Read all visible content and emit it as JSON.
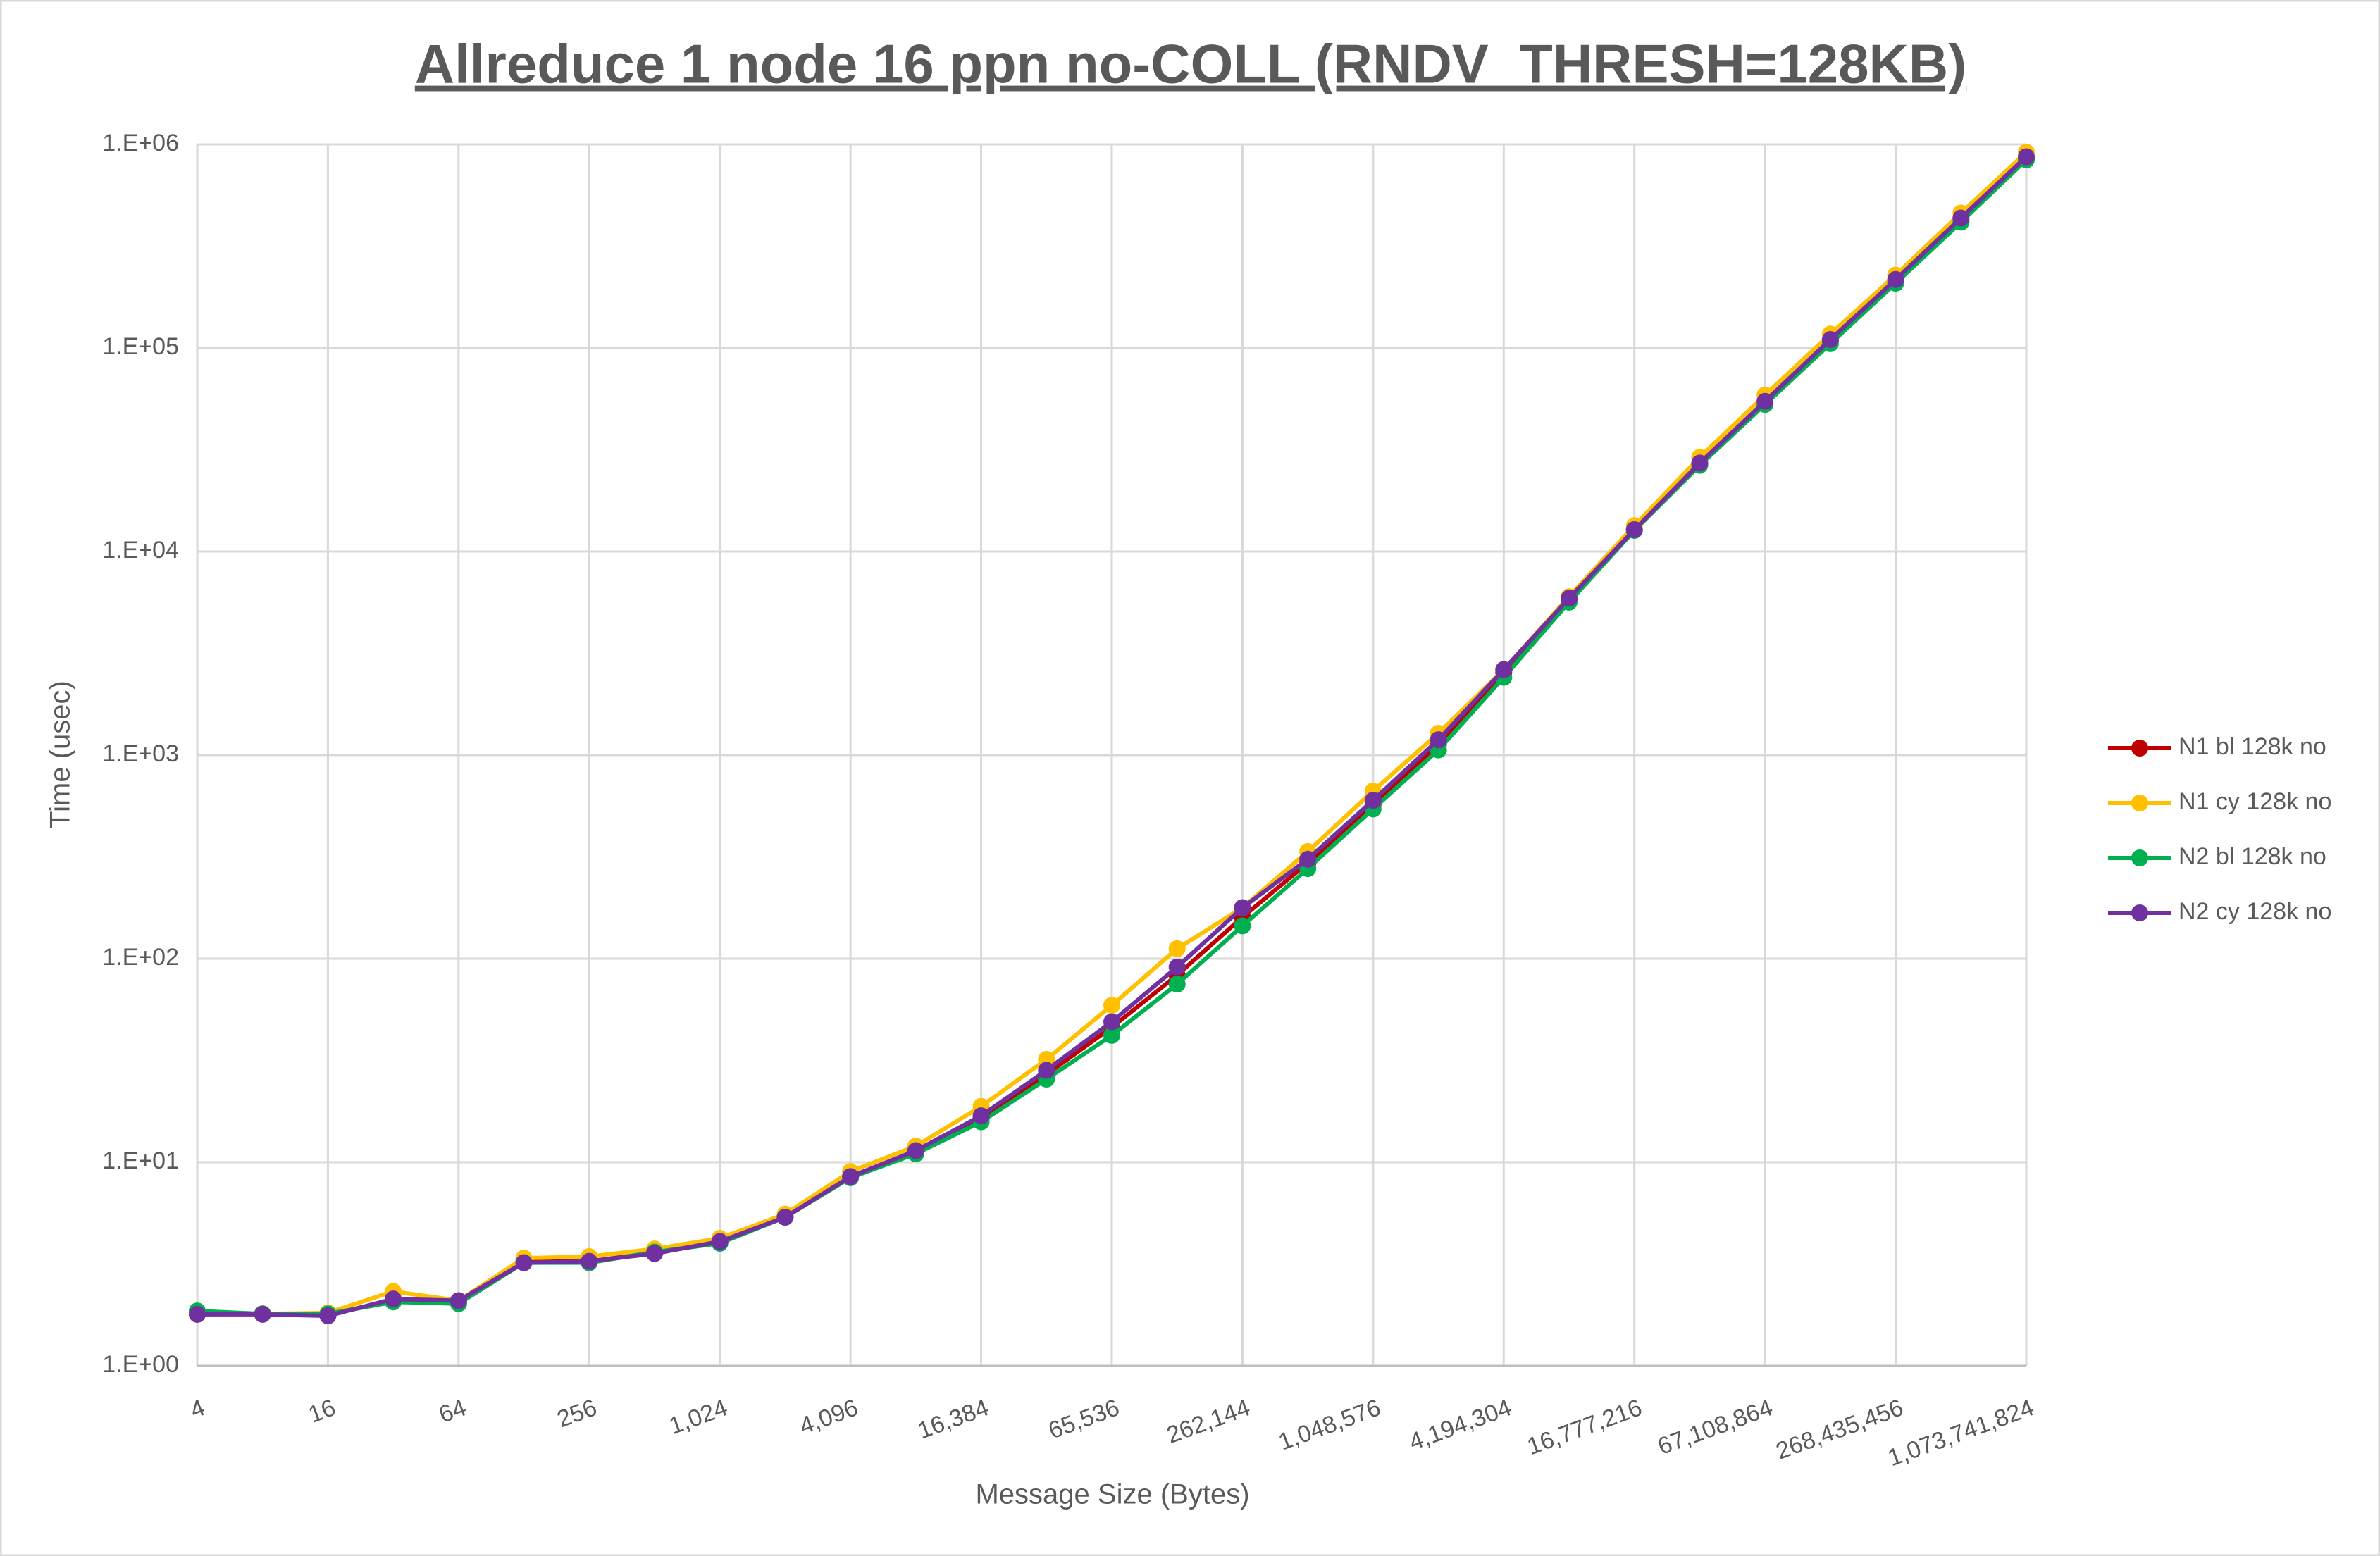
{
  "chart_data": {
    "type": "line",
    "title": "Allreduce 1 node 16 ppn no-COLL (RNDV_THRESH=128KB)",
    "x_label": "Message Size (Bytes)",
    "y_label": "Time (usec)",
    "x": [
      4,
      8,
      16,
      32,
      64,
      128,
      256,
      512,
      1024,
      2048,
      4096,
      8192,
      16384,
      32768,
      65536,
      131072,
      262144,
      524288,
      1048576,
      2097152,
      4194304,
      8388608,
      16777216,
      33554432,
      67108864,
      134217728,
      268435456,
      536870912,
      1073741824
    ],
    "x_log_base": 2,
    "y_log_base": 10,
    "xlim": [
      4,
      1073741824
    ],
    "xticks": [
      4,
      16,
      64,
      256,
      {
        "value": 1024,
        "label": "1,024"
      },
      {
        "value": 4096,
        "label": "4,096"
      },
      {
        "value": 16384,
        "label": "16,384"
      },
      {
        "value": 65536,
        "label": "65,536"
      },
      {
        "value": 262144,
        "label": "262,144"
      },
      {
        "value": 1048576,
        "label": "1,048,576"
      },
      {
        "value": 4194304,
        "label": "4,194,304"
      },
      {
        "value": 16777216,
        "label": "16,777,216"
      },
      {
        "value": 67108864,
        "label": "67,108,864"
      },
      {
        "value": 268435456,
        "label": "268,435,456"
      },
      {
        "value": 1073741824,
        "label": "1,073,741,824"
      }
    ],
    "ylim": [
      1,
      1000000
    ],
    "yticks": [
      {
        "value": 1,
        "label": "1.E+00"
      },
      {
        "value": 10,
        "label": "1.E+01"
      },
      {
        "value": 100,
        "label": "1.E+02"
      },
      {
        "value": 1000,
        "label": "1.E+03"
      },
      {
        "value": 10000,
        "label": "1.E+04"
      },
      {
        "value": 100000,
        "label": "1.E+05"
      },
      {
        "value": 1000000,
        "label": "1.E+06"
      }
    ],
    "grid": true,
    "legend": "right",
    "series": [
      {
        "name": "N1 bl 128k no",
        "color": "#c00000",
        "values": [
          1.8,
          1.8,
          1.78,
          2.1,
          2.06,
          3.25,
          3.26,
          3.6,
          4.05,
          5.4,
          8.5,
          11.3,
          16.5,
          27,
          46,
          83,
          160,
          295,
          575,
          1130,
          2550,
          5800,
          12800,
          27000,
          54000,
          108000,
          213000,
          425000,
          860000
        ]
      },
      {
        "name": "N1 cy 128k no",
        "color": "#ffc000",
        "values": [
          1.79,
          1.8,
          1.82,
          2.32,
          2.09,
          3.38,
          3.44,
          3.75,
          4.23,
          5.56,
          9.0,
          12.0,
          18.8,
          32,
          59,
          112,
          178,
          336,
          667,
          1280,
          2630,
          6000,
          13400,
          29000,
          58700,
          117000,
          228000,
          460000,
          915000
        ]
      },
      {
        "name": "N2 bl 128k no",
        "color": "#00b050",
        "values": [
          1.86,
          1.8,
          1.8,
          2.06,
          2.02,
          3.21,
          3.21,
          3.62,
          4.0,
          5.37,
          8.4,
          11.0,
          15.8,
          25.6,
          42,
          75,
          145,
          277,
          544,
          1060,
          2410,
          5640,
          12700,
          26500,
          52800,
          105000,
          208000,
          415000,
          840000
        ]
      },
      {
        "name": "N2 cy 128k no",
        "color": "#7030a0",
        "values": [
          1.79,
          1.79,
          1.76,
          2.13,
          2.09,
          3.21,
          3.26,
          3.56,
          4.08,
          5.37,
          8.5,
          11.4,
          16.9,
          28.3,
          49,
          91,
          178,
          308,
          600,
          1190,
          2630,
          5900,
          12800,
          27200,
          54700,
          110000,
          217000,
          435000,
          870000
        ]
      }
    ]
  }
}
